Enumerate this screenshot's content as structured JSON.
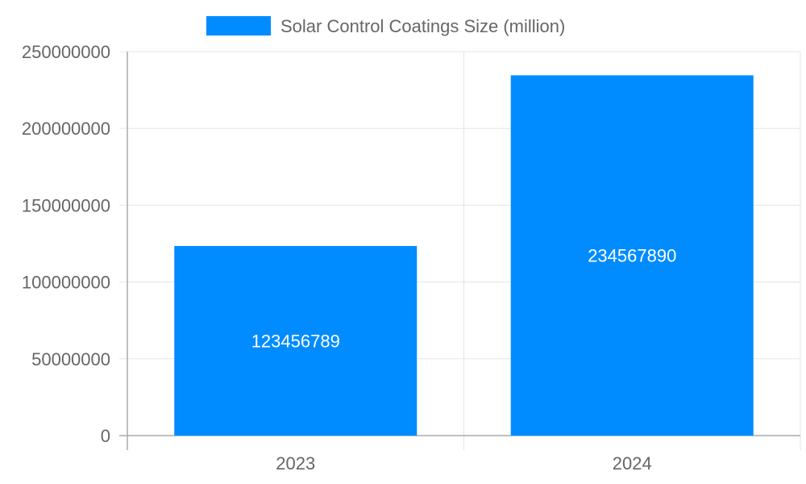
{
  "chart_data": {
    "type": "bar",
    "categories": [
      "2023",
      "2024"
    ],
    "series": [
      {
        "name": "Solar Control Coatings Size (million)",
        "values": [
          123456789,
          234567890
        ],
        "color": "#008cff"
      }
    ],
    "ylim": [
      0,
      250000000
    ],
    "yticks": [
      "0",
      "50000000",
      "100000000",
      "150000000",
      "200000000",
      "250000000"
    ],
    "grid": true,
    "legend_position": "top",
    "data_labels": [
      "123456789",
      "234567890"
    ]
  }
}
